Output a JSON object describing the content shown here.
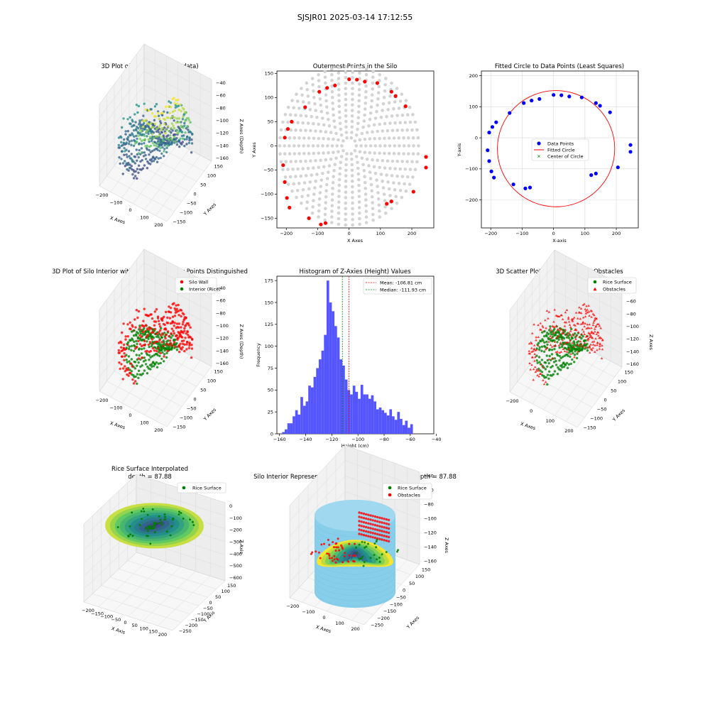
{
  "figure": {
    "suptitle": "SJSJR01 2025-03-14 17:12:55"
  },
  "colors": {
    "wall": "#ff0000",
    "rice": "#008000",
    "gray": "#d3d3d3",
    "blue": "#0000ff",
    "hist": "#5555ff",
    "cyl": "#87ceeb",
    "pane": "#f2f2f2",
    "grid": "#d9d9d9"
  },
  "chart_data": [
    {
      "id": "p1",
      "type": "scatter3d",
      "title": "3D Plot of Silo Interior(row data)",
      "xlabel": "X Axes",
      "ylabel": "Y Axes",
      "zlabel": "Z Axes (Depth)",
      "xticks": [
        "−200",
        "−100",
        "0",
        "100",
        "200"
      ],
      "yticks": [
        "−150",
        "−100",
        "−50",
        "0",
        "50",
        "100",
        "150"
      ],
      "zticks": [
        "−40",
        "−60",
        "−80",
        "−100",
        "−120",
        "−140",
        "−160"
      ],
      "xlim": [
        -250,
        250
      ],
      "ylim": [
        -170,
        170
      ],
      "zlim": [
        -165,
        -35
      ],
      "colormap": "viridis"
    },
    {
      "id": "p2",
      "type": "scatter",
      "title": "Outermost Points in the Silo",
      "xlabel": "X Axes",
      "ylabel": "Y Axes",
      "xticks": [
        "−200",
        "−100",
        "0",
        "100",
        "200"
      ],
      "yticks": [
        "−150",
        "−100",
        "−50",
        "0",
        "50",
        "100",
        "150"
      ],
      "xlim": [
        -230,
        270
      ],
      "ylim": [
        -170,
        155
      ],
      "outer_points": [
        [
          -210,
          -40
        ],
        [
          -205,
          -75
        ],
        [
          -205,
          17
        ],
        [
          -198,
          -108
        ],
        [
          -195,
          35
        ],
        [
          -190,
          -128
        ],
        [
          -183,
          50
        ],
        [
          -140,
          80
        ],
        [
          -128,
          -150
        ],
        [
          -95,
          112
        ],
        [
          -90,
          -163
        ],
        [
          -75,
          -160
        ],
        [
          -70,
          120
        ],
        [
          -45,
          125
        ],
        [
          0,
          138
        ],
        [
          25,
          137
        ],
        [
          50,
          133
        ],
        [
          90,
          130
        ],
        [
          120,
          -120
        ],
        [
          135,
          112
        ],
        [
          135,
          -115
        ],
        [
          148,
          103
        ],
        [
          180,
          82
        ],
        [
          205,
          -95
        ],
        [
          245,
          -23
        ],
        [
          245,
          -45
        ]
      ]
    },
    {
      "id": "p3",
      "type": "scatter",
      "title": "Fitted Circle to Data Points (Least Squares)",
      "xlabel": "X-axis",
      "ylabel": "Y-axis",
      "xticks": [
        "−200",
        "−100",
        "0",
        "100",
        "200"
      ],
      "yticks": [
        "−200",
        "−100",
        "0",
        "100",
        "200"
      ],
      "xlim": [
        -230,
        270
      ],
      "ylim": [
        -290,
        215
      ],
      "legend": [
        "Data Points",
        "Fitted Circle",
        "Center of Circle"
      ],
      "data_points": [
        [
          -210,
          -40
        ],
        [
          -205,
          -75
        ],
        [
          -205,
          17
        ],
        [
          -198,
          -108
        ],
        [
          -195,
          35
        ],
        [
          -190,
          -128
        ],
        [
          -183,
          50
        ],
        [
          -140,
          80
        ],
        [
          -128,
          -150
        ],
        [
          -95,
          112
        ],
        [
          -90,
          -163
        ],
        [
          -75,
          -160
        ],
        [
          -70,
          120
        ],
        [
          -45,
          125
        ],
        [
          0,
          138
        ],
        [
          25,
          137
        ],
        [
          50,
          133
        ],
        [
          90,
          130
        ],
        [
          120,
          -120
        ],
        [
          135,
          112
        ],
        [
          135,
          -115
        ],
        [
          148,
          103
        ],
        [
          180,
          82
        ],
        [
          205,
          -95
        ],
        [
          245,
          -23
        ],
        [
          245,
          -45
        ]
      ],
      "circle": {
        "cx": 8,
        "cy": -35,
        "r": 187
      }
    },
    {
      "id": "p4",
      "type": "scatter3d",
      "title": "3D Plot of Silo Interior with Wall and Interior Points Distinguished",
      "xlabel": "X Axes",
      "ylabel": "Y Axes",
      "zlabel": "Z Axes (Depth)",
      "legend": [
        "Silo Wall",
        "Interior (Rice)"
      ],
      "xticks": [
        "−200",
        "−100",
        "0",
        "100",
        "200"
      ],
      "yticks": [
        "−150",
        "−100",
        "−50",
        "0",
        "50",
        "100",
        "150"
      ],
      "zticks": [
        "−40",
        "−60",
        "−80",
        "−100",
        "−120",
        "−140",
        "−160"
      ],
      "xlim": [
        -250,
        250
      ],
      "ylim": [
        -170,
        170
      ],
      "zlim": [
        -165,
        -35
      ]
    },
    {
      "id": "p5",
      "type": "histogram",
      "title": "Histogram of Z-Axies (Height) Values",
      "xlabel": "Height (cm)",
      "ylabel": "Frequency",
      "xticks": [
        "−160",
        "−140",
        "−120",
        "−100",
        "−80",
        "−60",
        "−40"
      ],
      "yticks": [
        "0",
        "25",
        "50",
        "75",
        "100",
        "125",
        "150",
        "175"
      ],
      "xlim": [
        -162,
        -42
      ],
      "ylim": [
        0,
        180
      ],
      "bin_start": -158,
      "bin_width": 2,
      "values": [
        2,
        5,
        12,
        12,
        20,
        27,
        22,
        42,
        32,
        37,
        55,
        53,
        65,
        75,
        85,
        95,
        113,
        175,
        150,
        140,
        123,
        110,
        85,
        78,
        62,
        50,
        45,
        55,
        48,
        40,
        56,
        45,
        45,
        40,
        44,
        37,
        28,
        30,
        27,
        24,
        21,
        28,
        20,
        16,
        25,
        17,
        10,
        15,
        7,
        11
      ],
      "legend": [
        "Mean: -106.81 cm",
        "Median: -111.93 cm"
      ],
      "mean": -106.81,
      "median": -111.93
    },
    {
      "id": "p6",
      "type": "scatter3d",
      "title": "3D Scatter Plot: Rice Surface vs Obstacles",
      "xlabel": "X Axes",
      "ylabel": "Y Axes",
      "zlabel": "Z Axes",
      "legend": [
        "Rice Surface",
        "Obstacles"
      ],
      "xticks": [
        "−200",
        "0",
        "100",
        "200"
      ],
      "yticks": [
        "−150",
        "−100",
        "−50",
        "0",
        "50",
        "100",
        "150"
      ],
      "zticks": [
        "−40",
        "−60",
        "−80",
        "−100",
        "−120",
        "−140",
        "−160"
      ],
      "xlim": [
        -250,
        250
      ],
      "ylim": [
        -170,
        170
      ],
      "zlim": [
        -165,
        -35
      ]
    },
    {
      "id": "p7",
      "type": "surface3d",
      "title": "Rice Surface Interpolated",
      "subtitle": "depth = 87.88",
      "xlabel": "X Axis",
      "ylabel": "Y Axis",
      "zlabel": "Z Axis",
      "legend": [
        "Rice Surface"
      ],
      "xticks": [
        "−200",
        "−150",
        "−100",
        "−50",
        "0",
        "50",
        "100",
        "150",
        "200"
      ],
      "yticks": [
        "−250",
        "−200",
        "−150",
        "−100",
        "−50",
        "0",
        "50",
        "100",
        "150"
      ],
      "zticks": [
        "0",
        "−100",
        "−200",
        "−300",
        "−400",
        "−500",
        "−600"
      ],
      "xlim": [
        -200,
        200
      ],
      "ylim": [
        -250,
        150
      ],
      "zlim": [
        -600,
        0
      ]
    },
    {
      "id": "p8",
      "type": "surface3d",
      "title": "Silo Interior Representation using weighted average depth = 87.88",
      "xlabel": "X Axes",
      "ylabel": "Y Axes",
      "zlabel": "Z Axes",
      "legend": [
        "Rice Surface",
        "Obstacles"
      ],
      "xticks": [
        "−200",
        "−100",
        "0",
        "100",
        "200"
      ],
      "yticks": [
        "−250",
        "−200",
        "−150",
        "−100",
        "−50",
        "0",
        "50",
        "100",
        "150"
      ],
      "zticks": [
        "−40",
        "−60",
        "−80",
        "−100",
        "−120",
        "−140",
        "−160"
      ],
      "xlim": [
        -250,
        250
      ],
      "ylim": [
        -250,
        150
      ],
      "zlim": [
        -165,
        -35
      ]
    }
  ]
}
